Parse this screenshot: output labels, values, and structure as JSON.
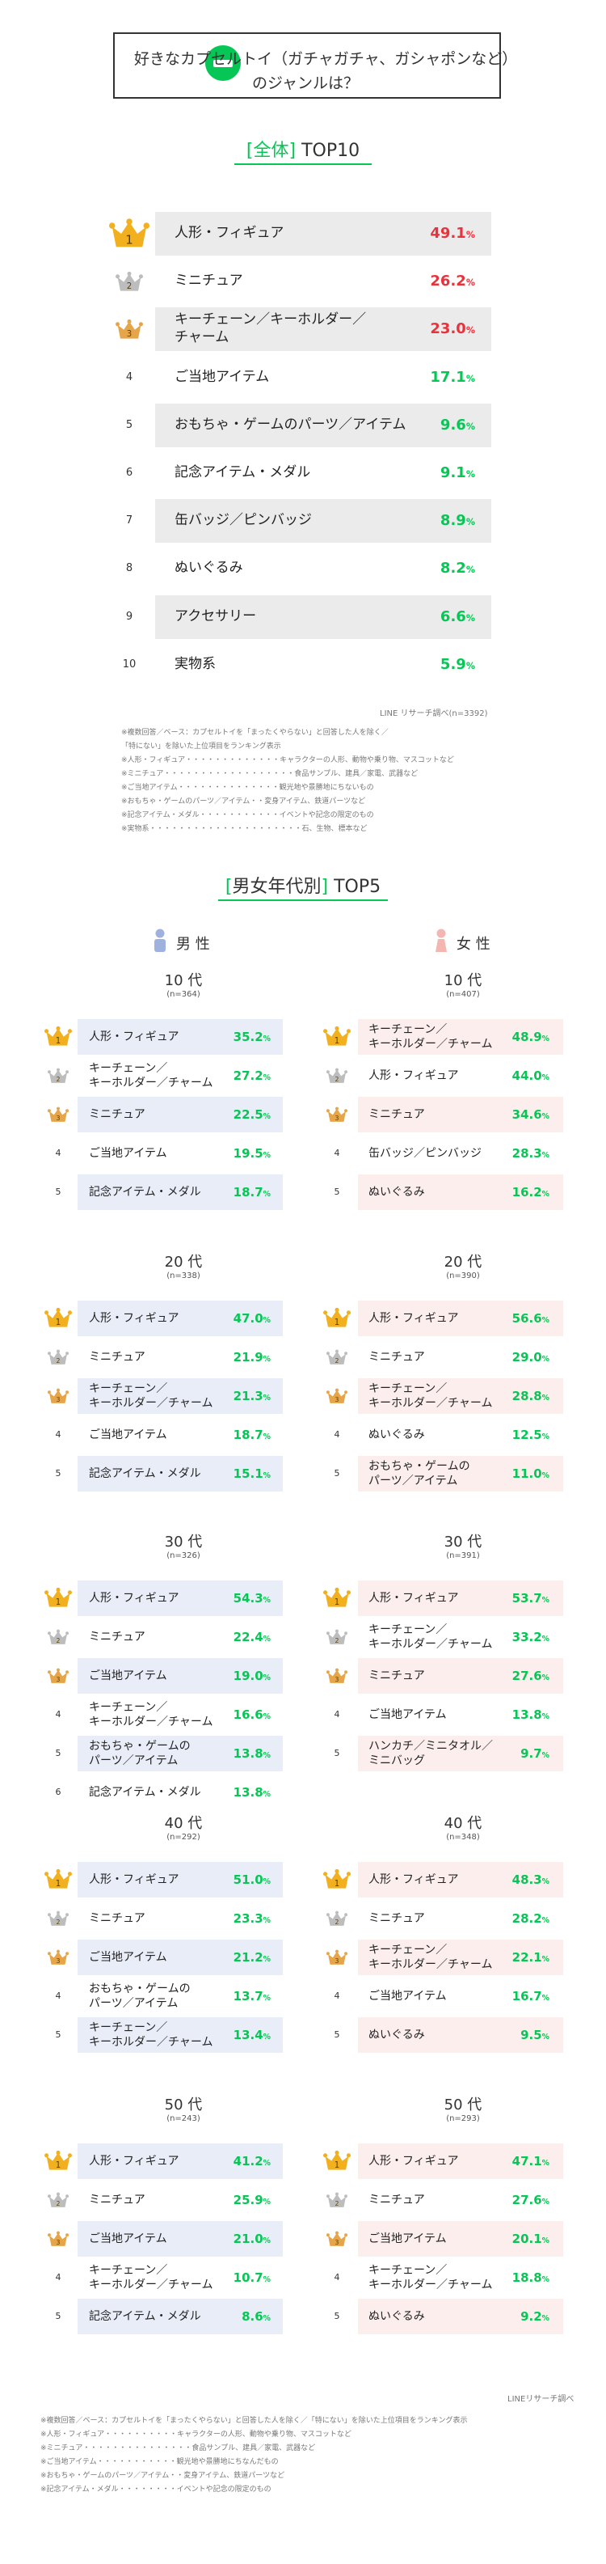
{
  "header": {
    "title_line1": "好きなカプセルトイ（ガチャガチャ、ガシャポンなど）",
    "title_line2": "のジャンルは？"
  },
  "overall": {
    "title_bracket": "[全体]",
    "title_text": "TOP10",
    "items": [
      {
        "rank": "1",
        "label": "人形・フィギュア",
        "value": "49.1"
      },
      {
        "rank": "2",
        "label": "ミニチュア",
        "value": "26.2"
      },
      {
        "rank": "3",
        "label": "キーチェーン／キーホルダー／\nチャーム",
        "value": "23.0"
      },
      {
        "rank": "4",
        "label": "ご当地アイテム",
        "value": "17.1"
      },
      {
        "rank": "5",
        "label": "おもちゃ・ゲームのパーツ／アイテム",
        "value": "9.6"
      },
      {
        "rank": "6",
        "label": "記念アイテム・メダル",
        "value": "9.1"
      },
      {
        "rank": "7",
        "label": "缶バッジ／ピンバッジ",
        "value": "8.9"
      },
      {
        "rank": "8",
        "label": "ぬいぐるみ",
        "value": "8.2"
      },
      {
        "rank": "9",
        "label": "アクセサリー",
        "value": "6.6"
      },
      {
        "rank": "10",
        "label": "実物系",
        "value": "5.9"
      }
    ],
    "source": "LINE リサーチ調べ(n=3392)",
    "notes": [
      "※複数回答／ベース：カプセルトイを「まったくやらない」と回答した人を除く／",
      "「特にない」を除いた上位項目をランキング表示",
      "※人形・フィギュア・・・・・・・・・・・・・キャラクターの人形、動物や乗り物、マスコットなど",
      "※ミニチュア・・・・・・・・・・・・・・・・・・食品サンプル、建具／家電、武器など",
      "※ご当地アイテム・・・・・・・・・・・・・・観光地や景勝地にちないもの",
      "※おもちゃ・ゲームのパーツ／アイテム・・変身アイテム、鉄道パーツなど",
      "※記念アイテム・メダル・・・・・・・・・・・イベントや記念の限定のもの",
      "※実物系・・・・・・・・・・・・・・・・・・・・・石、生物、標本など"
    ]
  },
  "by_gender": {
    "title_bracket_open": "[",
    "title_bracket_text": "男女年代別",
    "title_bracket_close": "]",
    "title_text": "TOP5",
    "male_label": "男 性",
    "female_label": "女 性",
    "pct": "%"
  },
  "chart_data": {
    "type": "table",
    "overall": {
      "categories": [
        "人形・フィギュア",
        "ミニチュア",
        "キーチェーン／キーホルダー／チャーム",
        "ご当地アイテム",
        "おもちゃ・ゲームのパーツ／アイテム",
        "記念アイテム・メダル",
        "缶バッジ／ピンバッジ",
        "ぬいぐるみ",
        "アクセサリー",
        "実物系"
      ],
      "values": [
        49.1,
        26.2,
        23.0,
        17.1,
        9.6,
        9.1,
        8.9,
        8.2,
        6.6,
        5.9
      ],
      "unit": "%"
    },
    "groups": [
      {
        "age": "10 代",
        "male": {
          "n": "(n=364)",
          "items": [
            {
              "label": "人形・フィギュア",
              "value": "35.2"
            },
            {
              "label": "キーチェーン／\nキーホルダー／チャーム",
              "value": "27.2"
            },
            {
              "label": "ミニチュア",
              "value": "22.5"
            },
            {
              "label": "ご当地アイテム",
              "value": "19.5"
            },
            {
              "label": "記念アイテム・メダル",
              "value": "18.7"
            }
          ]
        },
        "female": {
          "n": "(n=407)",
          "items": [
            {
              "label": "キーチェーン／\nキーホルダー／チャーム",
              "value": "48.9"
            },
            {
              "label": "人形・フィギュア",
              "value": "44.0"
            },
            {
              "label": "ミニチュア",
              "value": "34.6"
            },
            {
              "label": "缶バッジ／ピンバッジ",
              "value": "28.3"
            },
            {
              "label": "ぬいぐるみ",
              "value": "16.2"
            }
          ]
        }
      },
      {
        "age": "20 代",
        "male": {
          "n": "(n=338)",
          "items": [
            {
              "label": "人形・フィギュア",
              "value": "47.0"
            },
            {
              "label": "ミニチュア",
              "value": "21.9"
            },
            {
              "label": "キーチェーン／\nキーホルダー／チャーム",
              "value": "21.3"
            },
            {
              "label": "ご当地アイテム",
              "value": "18.7"
            },
            {
              "label": "記念アイテム・メダル",
              "value": "15.1"
            }
          ]
        },
        "female": {
          "n": "(n=390)",
          "items": [
            {
              "label": "人形・フィギュア",
              "value": "56.6"
            },
            {
              "label": "ミニチュア",
              "value": "29.0"
            },
            {
              "label": "キーチェーン／\nキーホルダー／チャーム",
              "value": "28.8"
            },
            {
              "label": "ぬいぐるみ",
              "value": "12.5"
            },
            {
              "label": "おもちゃ・ゲームの\nパーツ／アイテム",
              "value": "11.0"
            }
          ]
        }
      },
      {
        "age": "30 代",
        "male": {
          "n": "(n=326)",
          "items": [
            {
              "label": "人形・フィギュア",
              "value": "54.3"
            },
            {
              "label": "ミニチュア",
              "value": "22.4"
            },
            {
              "label": "ご当地アイテム",
              "value": "19.0"
            },
            {
              "label": "キーチェーン／\nキーホルダー／チャーム",
              "value": "16.6"
            },
            {
              "label": "おもちゃ・ゲームの\nパーツ／アイテム",
              "value": "13.8"
            },
            {
              "label": "記念アイテム・メダル",
              "value": "13.8"
            }
          ]
        },
        "female": {
          "n": "(n=391)",
          "items": [
            {
              "label": "人形・フィギュア",
              "value": "53.7"
            },
            {
              "label": "キーチェーン／\nキーホルダー／チャーム",
              "value": "33.2"
            },
            {
              "label": "ミニチュア",
              "value": "27.6"
            },
            {
              "label": "ご当地アイテム",
              "value": "13.8"
            },
            {
              "label": "ハンカチ／ミニタオル／\nミニバッグ",
              "value": "9.7"
            }
          ]
        }
      },
      {
        "age": "40 代",
        "male": {
          "n": "(n=292)",
          "items": [
            {
              "label": "人形・フィギュア",
              "value": "51.0"
            },
            {
              "label": "ミニチュア",
              "value": "23.3"
            },
            {
              "label": "ご当地アイテム",
              "value": "21.2"
            },
            {
              "label": "おもちゃ・ゲームの\nパーツ／アイテム",
              "value": "13.7"
            },
            {
              "label": "キーチェーン／\nキーホルダー／チャーム",
              "value": "13.4"
            }
          ]
        },
        "female": {
          "n": "(n=348)",
          "items": [
            {
              "label": "人形・フィギュア",
              "value": "48.3"
            },
            {
              "label": "ミニチュア",
              "value": "28.2"
            },
            {
              "label": "キーチェーン／\nキーホルダー／チャーム",
              "value": "22.1"
            },
            {
              "label": "ご当地アイテム",
              "value": "16.7"
            },
            {
              "label": "ぬいぐるみ",
              "value": "9.5"
            }
          ]
        }
      },
      {
        "age": "50 代",
        "male": {
          "n": "(n=243)",
          "items": [
            {
              "label": "人形・フィギュア",
              "value": "41.2"
            },
            {
              "label": "ミニチュア",
              "value": "25.9"
            },
            {
              "label": "ご当地アイテム",
              "value": "21.0"
            },
            {
              "label": "キーチェーン／\nキーホルダー／チャーム",
              "value": "10.7"
            },
            {
              "label": "記念アイテム・メダル",
              "value": "8.6"
            }
          ]
        },
        "female": {
          "n": "(n=293)",
          "items": [
            {
              "label": "人形・フィギュア",
              "value": "47.1"
            },
            {
              "label": "ミニチュア",
              "value": "27.6"
            },
            {
              "label": "ご当地アイテム",
              "value": "20.1"
            },
            {
              "label": "キーチェーン／\nキーホルダー／チャーム",
              "value": "18.8"
            },
            {
              "label": "ぬいぐるみ",
              "value": "9.2"
            }
          ]
        }
      }
    ]
  },
  "footer": {
    "source": "LINEリサーチ調べ",
    "notes": [
      "※複数回答／ベース：カプセルトイを「まったくやらない」と回答した人を除く／「特にない」を除いた上位項目をランキング表示",
      "※人形・フィギュア・・・・・・・・・・キャラクターの人形、動物や乗り物、マスコットなど",
      "※ミニチュア・・・・・・・・・・・・・・・食品サンプル、建具／家電、武器など",
      "※ご当地アイテム・・・・・・・・・・・観光地や景勝地にちなんだもの",
      "※おもちゃ・ゲームのパーツ／アイテム・・変身アイテム、鉄道パーツなど",
      "※記念アイテム・メダル・・・・・・・・イベントや記念の限定のもの"
    ]
  },
  "colors": {
    "accent": "#06c755",
    "top": "#e8323c",
    "gold": "#f2b01e",
    "silver": "#bdbdbd",
    "bronze": "#e7a54a",
    "male_bg": "#e9edf8",
    "female_bg": "#fdeeee",
    "male_icon": "#9fb2df",
    "female_icon": "#f3b6b0"
  }
}
